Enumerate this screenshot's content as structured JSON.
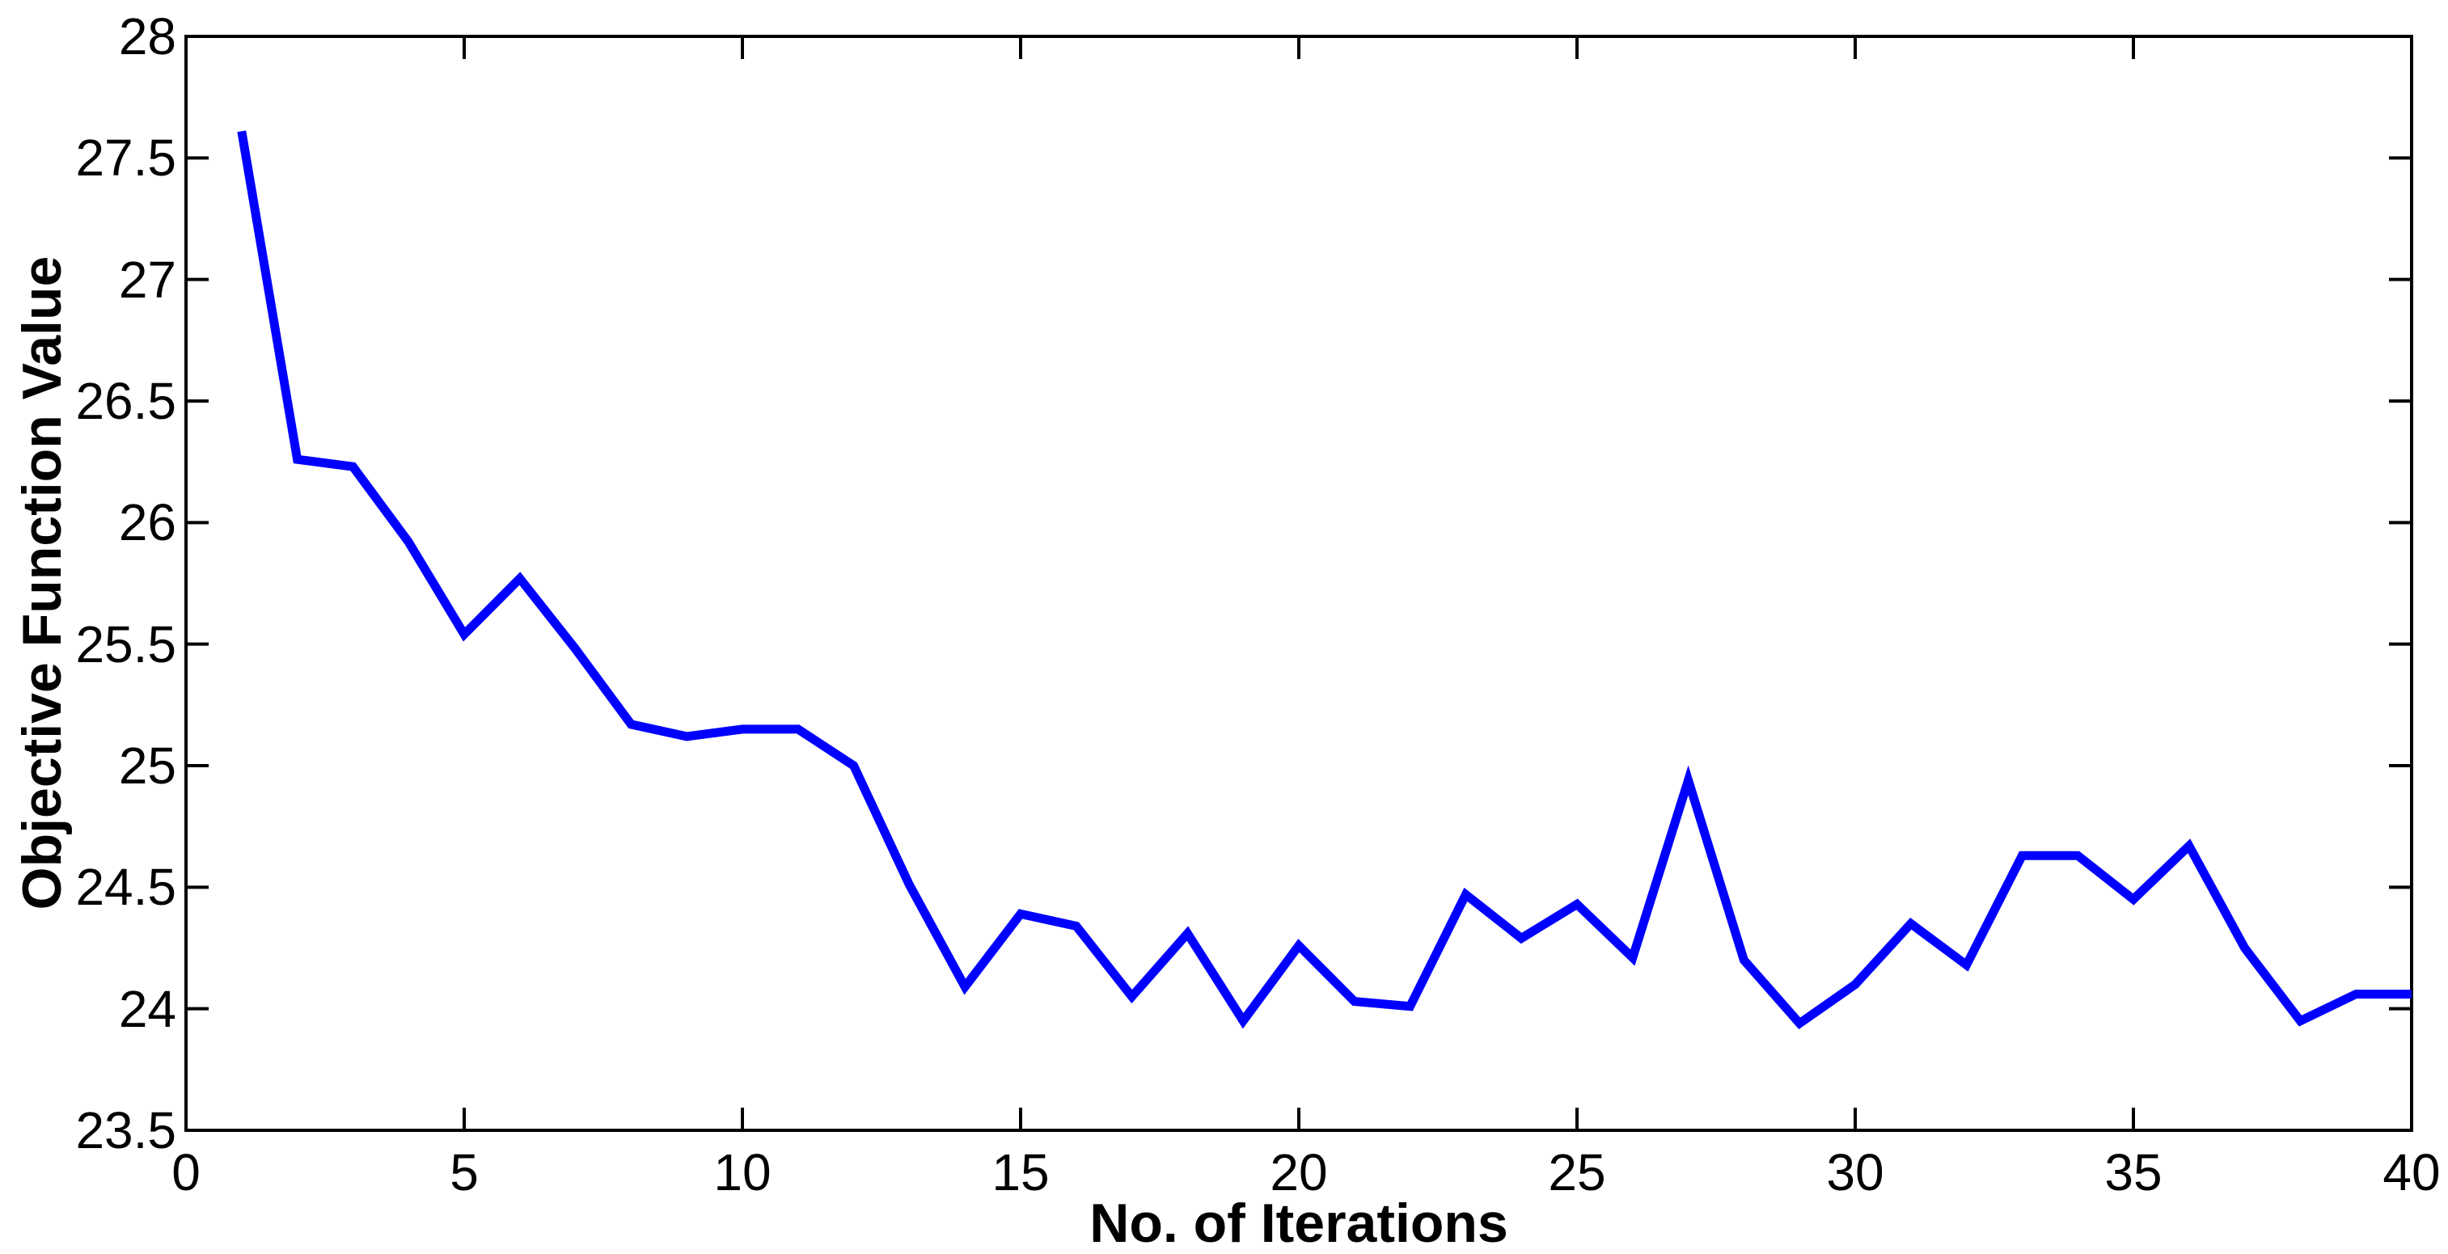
{
  "chart_data": {
    "type": "line",
    "title": "",
    "xlabel": "No. of Iterations",
    "ylabel": "Objective Function Value",
    "xlim": [
      0,
      40
    ],
    "ylim": [
      23.5,
      28
    ],
    "xticks": [
      0,
      5,
      10,
      15,
      20,
      25,
      30,
      35,
      40
    ],
    "xtick_labels": [
      "0",
      "5",
      "10",
      "15",
      "20",
      "25",
      "30",
      "35",
      "40"
    ],
    "yticks": [
      23.5,
      24,
      24.5,
      25,
      25.5,
      26,
      26.5,
      27,
      27.5,
      28
    ],
    "ytick_labels": [
      "23.5",
      "24",
      "24.5",
      "25",
      "25.5",
      "26",
      "26.5",
      "27",
      "27.5",
      "28"
    ],
    "grid": false,
    "legend": null,
    "line_color": "#0000FF",
    "axis_color": "#000000",
    "background_color": "#FFFFFF",
    "x": [
      1,
      2,
      3,
      4,
      5,
      6,
      7,
      8,
      9,
      10,
      11,
      12,
      13,
      14,
      15,
      16,
      17,
      18,
      19,
      20,
      21,
      22,
      23,
      24,
      25,
      26,
      27,
      28,
      29,
      30,
      31,
      32,
      33,
      34,
      35,
      36,
      37,
      38,
      39,
      40
    ],
    "series": [
      {
        "name": "objective-function-value",
        "values": [
          27.61,
          26.26,
          26.23,
          25.92,
          25.54,
          25.77,
          25.48,
          25.17,
          25.12,
          25.15,
          25.15,
          25.0,
          24.51,
          24.09,
          24.39,
          24.34,
          24.05,
          24.31,
          23.95,
          24.26,
          24.03,
          24.01,
          24.47,
          24.29,
          24.43,
          24.21,
          24.94,
          24.2,
          23.94,
          24.1,
          24.35,
          24.18,
          24.63,
          24.63,
          24.45,
          24.67,
          24.25,
          23.95,
          24.06,
          24.06
        ]
      }
    ]
  }
}
